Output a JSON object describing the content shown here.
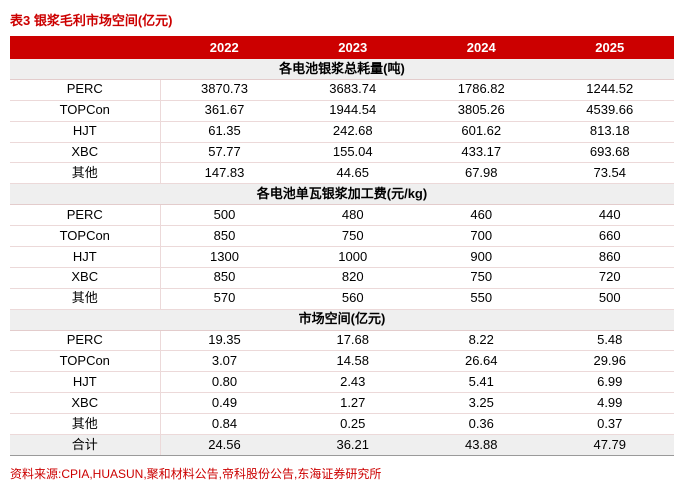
{
  "title": "表3  银浆毛利市场空间(亿元)",
  "source": "资料来源:CPIA,HUASUN,聚和材料公告,帝科股份公告,东海证券研究所",
  "colors": {
    "accent_red": "#cc0000",
    "header_bg": "#cc0000",
    "header_text": "#ffffff",
    "section_bg": "#efefef",
    "row_line": "#ecd9d9"
  },
  "table": {
    "years": [
      "2022",
      "2023",
      "2024",
      "2025"
    ],
    "sections": [
      {
        "header": "各电池银浆总耗量(吨)",
        "rows": [
          {
            "label": "PERC",
            "values": [
              "3870.73",
              "3683.74",
              "1786.82",
              "1244.52"
            ]
          },
          {
            "label": "TOPCon",
            "values": [
              "361.67",
              "1944.54",
              "3805.26",
              "4539.66"
            ]
          },
          {
            "label": "HJT",
            "values": [
              "61.35",
              "242.68",
              "601.62",
              "813.18"
            ]
          },
          {
            "label": "XBC",
            "values": [
              "57.77",
              "155.04",
              "433.17",
              "693.68"
            ]
          },
          {
            "label": "其他",
            "values": [
              "147.83",
              "44.65",
              "67.98",
              "73.54"
            ]
          }
        ]
      },
      {
        "header": "各电池单瓦银浆加工费(元/kg)",
        "rows": [
          {
            "label": "PERC",
            "values": [
              "500",
              "480",
              "460",
              "440"
            ]
          },
          {
            "label": "TOPCon",
            "values": [
              "850",
              "750",
              "700",
              "660"
            ]
          },
          {
            "label": "HJT",
            "values": [
              "1300",
              "1000",
              "900",
              "860"
            ]
          },
          {
            "label": "XBC",
            "values": [
              "850",
              "820",
              "750",
              "720"
            ]
          },
          {
            "label": "其他",
            "values": [
              "570",
              "560",
              "550",
              "500"
            ]
          }
        ]
      },
      {
        "header": "市场空间(亿元)",
        "rows": [
          {
            "label": "PERC",
            "values": [
              "19.35",
              "17.68",
              "8.22",
              "5.48"
            ]
          },
          {
            "label": "TOPCon",
            "values": [
              "3.07",
              "14.58",
              "26.64",
              "29.96"
            ]
          },
          {
            "label": "HJT",
            "values": [
              "0.80",
              "2.43",
              "5.41",
              "6.99"
            ]
          },
          {
            "label": "XBC",
            "values": [
              "0.49",
              "1.27",
              "3.25",
              "4.99"
            ]
          },
          {
            "label": "其他",
            "values": [
              "0.84",
              "0.25",
              "0.36",
              "0.37"
            ]
          }
        ]
      }
    ],
    "total": {
      "label": "合计",
      "values": [
        "24.56",
        "36.21",
        "43.88",
        "47.79"
      ]
    }
  }
}
